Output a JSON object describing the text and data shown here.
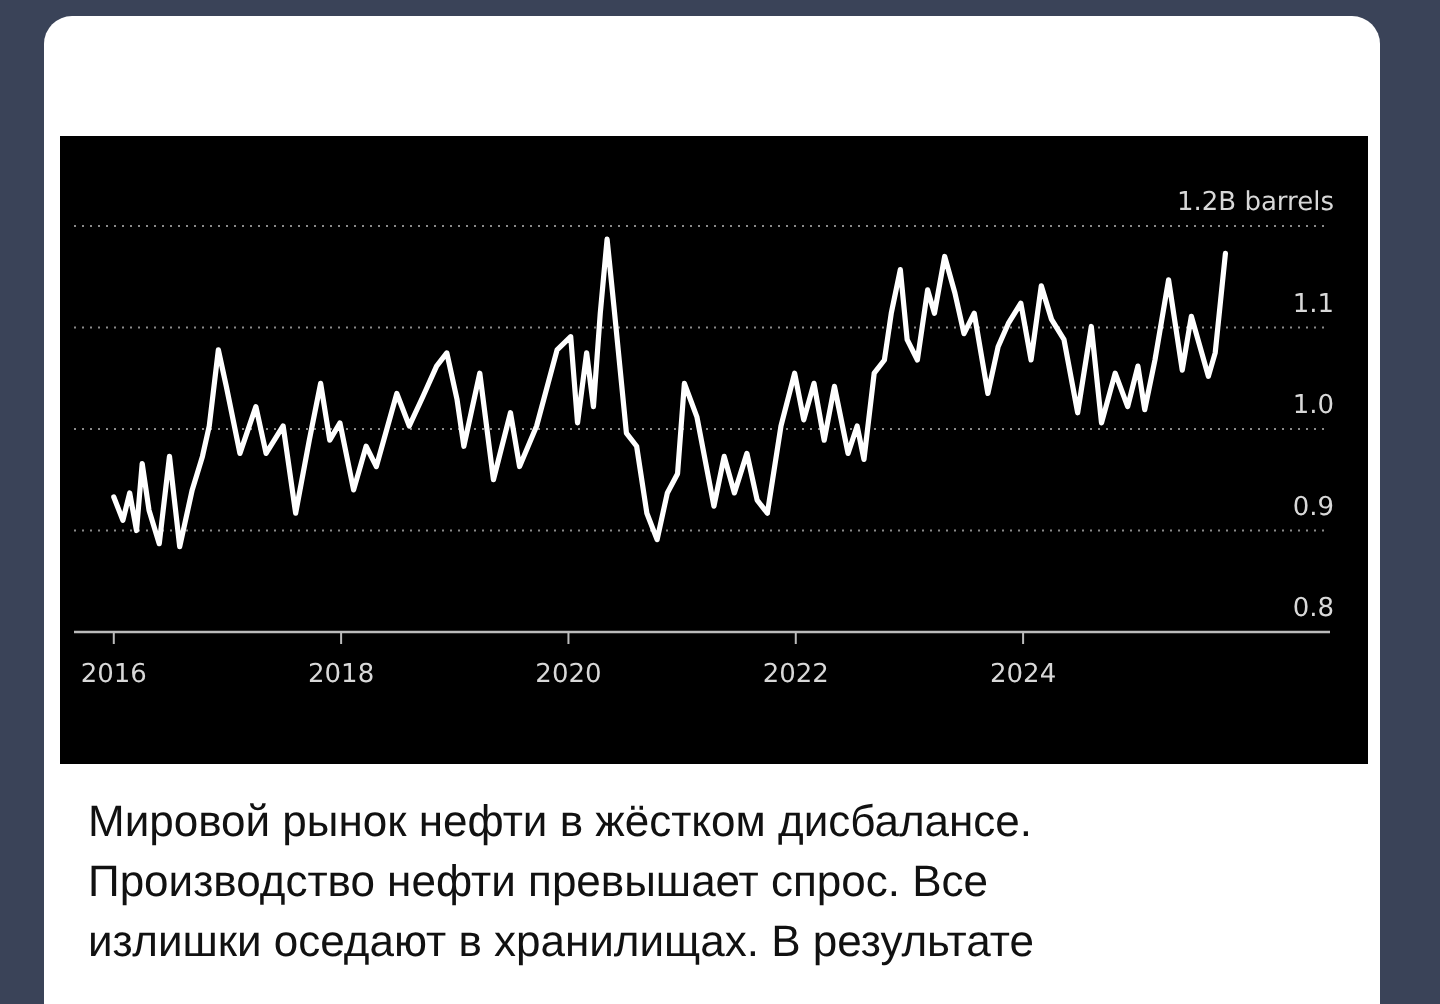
{
  "chart_data": {
    "type": "line",
    "xlim": [
      2015.65,
      2026.7
    ],
    "xticks": [
      2016,
      2018,
      2020,
      2022,
      2024
    ],
    "ylim": [
      0.8,
      1.2
    ],
    "yticks": [
      0.8,
      0.9,
      {
        "value": 1.0,
        "label": "1.0"
      },
      1.1,
      {
        "value": 1.2,
        "label": "1.2B barrels"
      }
    ],
    "grid": "y",
    "annotations": [
      "Мировой рынок нефти в жёстком дисбалансе. Производство нефти превышает спрос. Все излишки оседают в хранилищах. В результате"
    ],
    "series": [
      {
        "color": "#ffffff",
        "x": [
          2016.0,
          2016.08,
          2016.14,
          2016.2,
          2016.25,
          2016.31,
          2016.4,
          2016.49,
          2016.58,
          2016.69,
          2016.78,
          2016.84,
          2016.92,
          2016.99,
          2017.11,
          2017.25,
          2017.34,
          2017.49,
          2017.6,
          2017.72,
          2017.82,
          2017.9,
          2017.99,
          2018.11,
          2018.22,
          2018.31,
          2018.49,
          2018.6,
          2018.72,
          2018.84,
          2018.93,
          2019.02,
          2019.08,
          2019.22,
          2019.34,
          2019.49,
          2019.57,
          2019.72,
          2019.9,
          2020.02,
          2020.08,
          2020.16,
          2020.22,
          2020.28,
          2020.34,
          2020.4,
          2020.51,
          2020.6,
          2020.69,
          2020.78,
          2020.87,
          2020.96,
          2021.02,
          2021.13,
          2021.28,
          2021.37,
          2021.46,
          2021.57,
          2021.66,
          2021.75,
          2021.87,
          2021.99,
          2022.07,
          2022.16,
          2022.25,
          2022.34,
          2022.46,
          2022.54,
          2022.6,
          2022.69,
          2022.78,
          2022.84,
          2022.92,
          2022.98,
          2023.07,
          2023.16,
          2023.22,
          2023.31,
          2023.4,
          2023.48,
          2023.57,
          2023.69,
          2023.78,
          2023.87,
          2023.98,
          2024.07,
          2024.16,
          2024.25,
          2024.36,
          2024.48,
          2024.6,
          2024.69,
          2024.81,
          2024.92,
          2025.01,
          2025.07,
          2025.16,
          2025.28,
          2025.4,
          2025.48,
          2025.63,
          2025.69,
          2025.78
        ],
        "values": [
          0.933,
          0.91,
          0.937,
          0.9,
          0.966,
          0.92,
          0.887,
          0.973,
          0.884,
          0.94,
          0.973,
          1.003,
          1.078,
          1.042,
          0.976,
          1.022,
          0.976,
          1.003,
          0.917,
          0.989,
          1.045,
          0.989,
          1.006,
          0.94,
          0.983,
          0.963,
          1.035,
          1.003,
          1.032,
          1.062,
          1.075,
          1.029,
          0.983,
          1.055,
          0.95,
          1.016,
          0.963,
          1.003,
          1.078,
          1.091,
          1.006,
          1.075,
          1.022,
          1.114,
          1.187,
          1.121,
          0.996,
          0.983,
          0.917,
          0.891,
          0.937,
          0.956,
          1.045,
          1.012,
          0.924,
          0.973,
          0.937,
          0.976,
          0.93,
          0.917,
          1.003,
          1.055,
          1.009,
          1.045,
          0.989,
          1.042,
          0.976,
          1.003,
          0.97,
          1.055,
          1.068,
          1.114,
          1.157,
          1.088,
          1.068,
          1.137,
          1.114,
          1.17,
          1.134,
          1.094,
          1.114,
          1.035,
          1.081,
          1.104,
          1.124,
          1.068,
          1.141,
          1.108,
          1.088,
          1.016,
          1.101,
          1.006,
          1.055,
          1.022,
          1.062,
          1.019,
          1.068,
          1.147,
          1.058,
          1.111,
          1.052,
          1.075,
          1.173
        ]
      }
    ]
  }
}
